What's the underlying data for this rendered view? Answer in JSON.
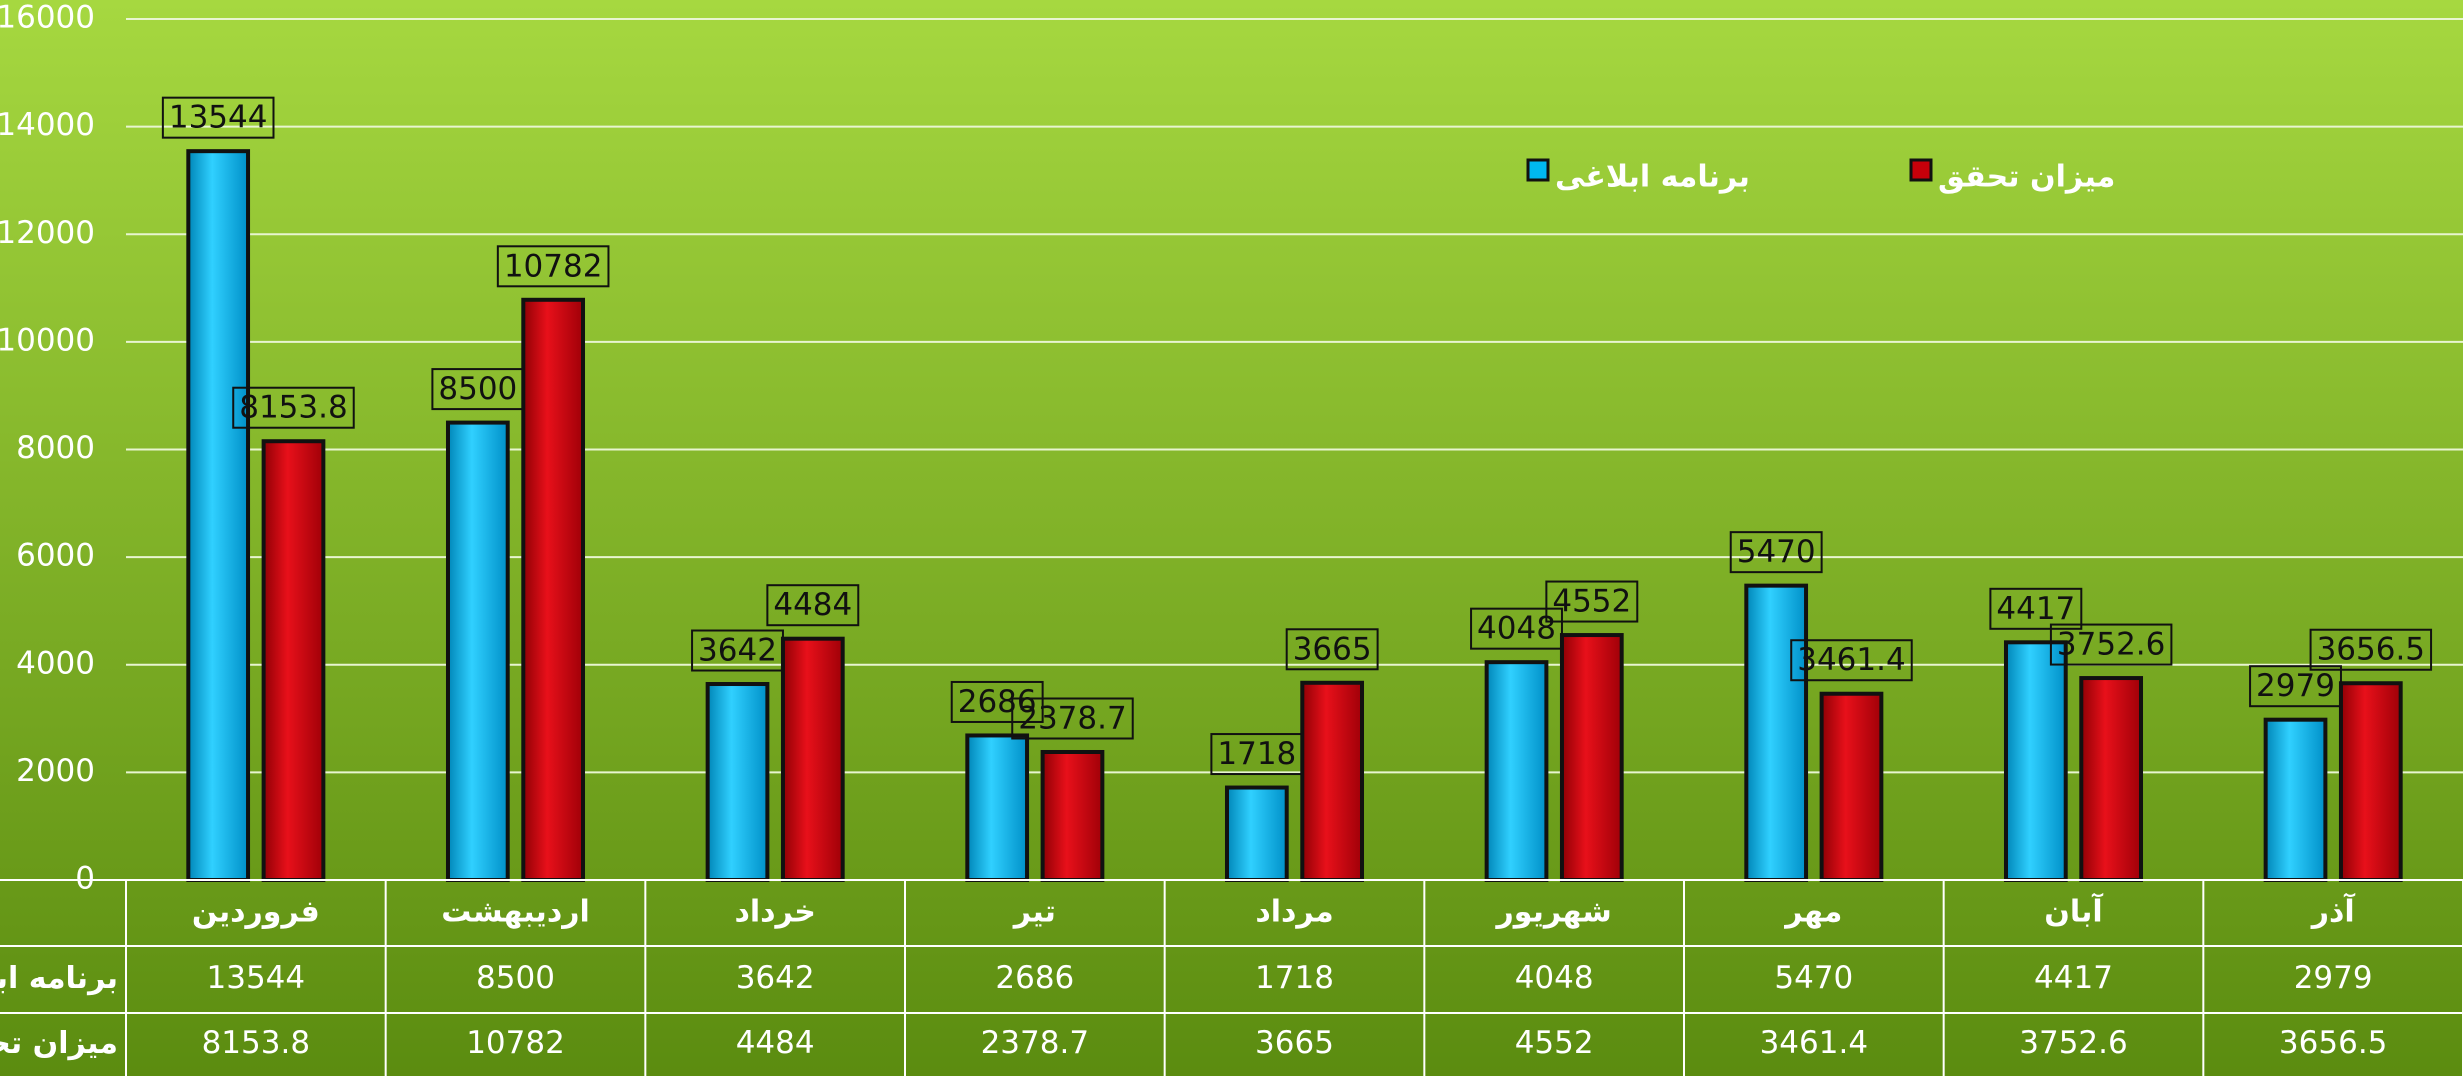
{
  "chart_data": {
    "type": "bar",
    "categories": [
      "فروردین",
      "اردیبهشت",
      "خرداد",
      "تیر",
      "مرداد",
      "شهریور",
      "مهر",
      "آبان",
      "آذر"
    ],
    "series": [
      {
        "name": "برنامه ابلاغی",
        "color": "#00b8f0",
        "values": [
          13544,
          8500,
          3642,
          2686,
          1718,
          4048,
          5470,
          4417,
          2979
        ]
      },
      {
        "name": "میزان تحقق",
        "color": "#c8000a",
        "values": [
          8153.8,
          10782,
          4484,
          2378.7,
          3665,
          4552,
          3461.4,
          3752.6,
          3656.5
        ]
      }
    ],
    "ylim": [
      0,
      16000
    ],
    "yticks": [
      0,
      2000,
      4000,
      6000,
      8000,
      10000,
      12000,
      14000,
      16000
    ],
    "grid": true,
    "legend": "top-right",
    "data_table": true
  }
}
